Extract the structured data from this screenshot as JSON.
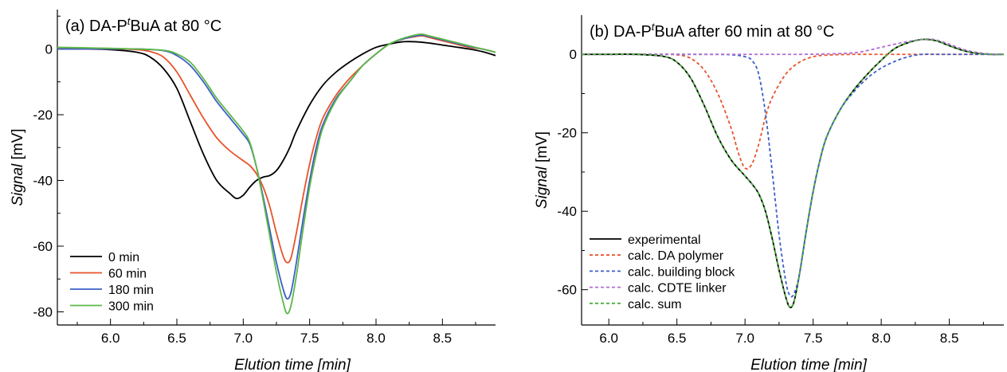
{
  "chart_data": [
    {
      "type": "line",
      "title_prefix": "(a) DA-P",
      "title_super": "t",
      "title_suffix": "BuA at 80 °C",
      "xlabel": "Elution time [min]",
      "ylabel_italic": "Signal",
      "ylabel_unit": " [mV]",
      "xlim": [
        5.6,
        8.9
      ],
      "ylim": [
        -84,
        12
      ],
      "xticks": [
        "6.0",
        "6.5",
        "7.0",
        "7.5",
        "8.0",
        "8.5"
      ],
      "yticks": [
        "0",
        "-20",
        "-40",
        "-60",
        "-80"
      ],
      "legend_position": "bottom-left",
      "series": [
        {
          "name": "0 min",
          "color": "#000000",
          "dash": false,
          "x": [
            5.6,
            5.8,
            6.0,
            6.2,
            6.3,
            6.4,
            6.5,
            6.6,
            6.7,
            6.8,
            6.9,
            6.95,
            7.0,
            7.05,
            7.1,
            7.15,
            7.2,
            7.25,
            7.3,
            7.35,
            7.4,
            7.5,
            7.6,
            7.7,
            7.8,
            7.9,
            8.0,
            8.1,
            8.2,
            8.3,
            8.4,
            8.5,
            8.6,
            8.7,
            8.8,
            8.9
          ],
          "y": [
            0,
            0,
            -0.2,
            -1,
            -2.5,
            -6,
            -12,
            -22,
            -32,
            -40,
            -44,
            -45.5,
            -44.5,
            -42,
            -40,
            -39,
            -38.5,
            -37,
            -34,
            -30,
            -25,
            -17,
            -11,
            -7,
            -4,
            -1.5,
            0.5,
            1.5,
            2.2,
            2.2,
            1.8,
            1.2,
            0.6,
            0,
            -0.8,
            -2
          ]
        },
        {
          "name": "60 min",
          "color": "#e8532a",
          "dash": false,
          "x": [
            5.6,
            6.0,
            6.2,
            6.3,
            6.4,
            6.5,
            6.6,
            6.7,
            6.8,
            6.9,
            7.0,
            7.05,
            7.1,
            7.15,
            7.2,
            7.25,
            7.3,
            7.33,
            7.36,
            7.4,
            7.45,
            7.5,
            7.55,
            7.6,
            7.7,
            7.8,
            7.9,
            8.0,
            8.1,
            8.2,
            8.3,
            8.35,
            8.4,
            8.5,
            8.6,
            8.7,
            8.8,
            8.9
          ],
          "y": [
            0,
            0,
            -0.2,
            -0.8,
            -2.5,
            -7,
            -14,
            -21,
            -27,
            -31,
            -34,
            -35.5,
            -38,
            -42,
            -48,
            -56,
            -63,
            -65,
            -63.5,
            -56,
            -45,
            -35,
            -27,
            -21,
            -14,
            -9,
            -5,
            -1.5,
            1.5,
            3,
            3.8,
            4,
            3.5,
            2.5,
            1.5,
            0.5,
            0,
            -1
          ]
        },
        {
          "name": "180 min",
          "color": "#3b5ec8",
          "dash": false,
          "x": [
            5.6,
            6.0,
            6.2,
            6.4,
            6.5,
            6.6,
            6.7,
            6.8,
            6.9,
            7.0,
            7.05,
            7.1,
            7.15,
            7.2,
            7.25,
            7.3,
            7.33,
            7.36,
            7.4,
            7.45,
            7.5,
            7.55,
            7.6,
            7.7,
            7.8,
            7.9,
            8.0,
            8.1,
            8.2,
            8.3,
            8.35,
            8.4,
            8.5,
            8.6,
            8.7,
            8.8,
            8.9
          ],
          "y": [
            0,
            0,
            0,
            -0.5,
            -2,
            -5,
            -10,
            -16,
            -21,
            -26,
            -29,
            -36,
            -45,
            -55,
            -65,
            -73,
            -76,
            -74,
            -65,
            -52,
            -40,
            -30,
            -23,
            -15,
            -10,
            -5,
            -1.5,
            1.5,
            3,
            4,
            4.2,
            3.8,
            2.8,
            1.8,
            0.8,
            0,
            -1
          ]
        },
        {
          "name": "300 min",
          "color": "#5cb847",
          "dash": false,
          "x": [
            5.6,
            6.0,
            6.2,
            6.4,
            6.5,
            6.6,
            6.7,
            6.8,
            6.9,
            7.0,
            7.05,
            7.1,
            7.15,
            7.2,
            7.25,
            7.3,
            7.33,
            7.36,
            7.4,
            7.45,
            7.5,
            7.55,
            7.6,
            7.7,
            7.8,
            7.9,
            8.0,
            8.1,
            8.2,
            8.3,
            8.35,
            8.4,
            8.5,
            8.6,
            8.7,
            8.8,
            8.9
          ],
          "y": [
            0.5,
            0.2,
            0,
            -0.4,
            -1.5,
            -4,
            -9,
            -15,
            -20,
            -25,
            -28.5,
            -36,
            -46,
            -57,
            -68,
            -77,
            -80.5,
            -78,
            -69,
            -55,
            -42,
            -32,
            -24,
            -15.5,
            -10,
            -5,
            -1.5,
            1.5,
            3.2,
            4.3,
            4.5,
            4,
            3,
            2,
            1,
            0,
            -1
          ]
        }
      ]
    },
    {
      "type": "line",
      "title_prefix": "(b) DA-P",
      "title_super": "t",
      "title_suffix": "BuA after 60 min at 80 °C",
      "xlabel": "Elution time [min]",
      "ylabel_italic": "Signal",
      "ylabel_unit": " [mV]",
      "xlim": [
        5.8,
        8.9
      ],
      "ylim": [
        -69,
        10
      ],
      "xticks": [
        "6.0",
        "6.5",
        "7.0",
        "7.5",
        "8.0",
        "8.5"
      ],
      "yticks": [
        "0",
        "-20",
        "-40",
        "-60"
      ],
      "legend_position": "bottom-left",
      "series": [
        {
          "name": "experimental",
          "color": "#000000",
          "dash": false,
          "x": [
            5.8,
            6.0,
            6.2,
            6.4,
            6.5,
            6.6,
            6.7,
            6.8,
            6.9,
            7.0,
            7.05,
            7.1,
            7.15,
            7.2,
            7.25,
            7.3,
            7.33,
            7.36,
            7.4,
            7.45,
            7.5,
            7.55,
            7.6,
            7.7,
            7.8,
            7.9,
            8.0,
            8.1,
            8.2,
            8.3,
            8.4,
            8.5,
            8.6,
            8.7,
            8.8,
            8.9
          ],
          "y": [
            0,
            0,
            0,
            -0.5,
            -2,
            -6,
            -13,
            -21,
            -27,
            -31,
            -33,
            -35.5,
            -40,
            -47,
            -55,
            -62,
            -64.5,
            -63,
            -56,
            -45,
            -35,
            -27,
            -21,
            -14,
            -9,
            -5,
            -1.5,
            1.5,
            3,
            3.8,
            3.5,
            2.2,
            1,
            0.3,
            0,
            0
          ]
        },
        {
          "name": "calc. DA polymer",
          "color": "#e8532a",
          "dash": true,
          "x": [
            5.8,
            6.4,
            6.5,
            6.6,
            6.7,
            6.8,
            6.9,
            6.95,
            7.0,
            7.05,
            7.1,
            7.15,
            7.2,
            7.3,
            7.4,
            7.5,
            7.6,
            7.8,
            8.0,
            8.9
          ],
          "y": [
            0,
            0,
            -0.1,
            -1,
            -4,
            -10,
            -19,
            -25,
            -29,
            -28,
            -23,
            -16,
            -11,
            -5,
            -2,
            -0.6,
            -0.2,
            0,
            0,
            0
          ]
        },
        {
          "name": "calc. building block",
          "color": "#3b5ec8",
          "dash": true,
          "x": [
            5.8,
            6.7,
            6.9,
            7.0,
            7.05,
            7.1,
            7.15,
            7.2,
            7.25,
            7.3,
            7.33,
            7.36,
            7.4,
            7.45,
            7.5,
            7.55,
            7.6,
            7.7,
            7.8,
            7.9,
            8.0,
            8.1,
            8.2,
            8.3,
            8.4,
            8.5,
            8.6,
            8.7,
            8.8,
            8.9
          ],
          "y": [
            0,
            0,
            -0.1,
            -0.6,
            -1.5,
            -5,
            -15,
            -30,
            -46,
            -58,
            -61.5,
            -61,
            -56,
            -45,
            -35,
            -27,
            -21,
            -14,
            -9.5,
            -6,
            -3.5,
            -1.8,
            -0.6,
            0,
            0,
            0,
            0,
            0,
            0,
            0
          ]
        },
        {
          "name": "calc. CDTE linker",
          "color": "#b36bd6",
          "dash": true,
          "x": [
            5.8,
            7.2,
            7.4,
            7.6,
            7.8,
            7.9,
            8.0,
            8.1,
            8.2,
            8.3,
            8.35,
            8.4,
            8.5,
            8.6,
            8.7,
            8.8,
            8.9
          ],
          "y": [
            0,
            0,
            0,
            0.1,
            0.4,
            1,
            1.8,
            2.6,
            3.3,
            3.8,
            3.9,
            3.7,
            2.6,
            1.3,
            0.5,
            0.1,
            0
          ]
        },
        {
          "name": "calc. sum",
          "color": "#4caf3f",
          "dash": true,
          "x": [
            5.8,
            6.0,
            6.2,
            6.4,
            6.5,
            6.6,
            6.7,
            6.8,
            6.9,
            7.0,
            7.05,
            7.1,
            7.15,
            7.2,
            7.25,
            7.3,
            7.33,
            7.36,
            7.4,
            7.45,
            7.5,
            7.55,
            7.6,
            7.7,
            7.8,
            7.9,
            8.0,
            8.1,
            8.2,
            8.3,
            8.4,
            8.5,
            8.6,
            8.7,
            8.8,
            8.9
          ],
          "y": [
            0,
            0,
            0,
            -0.5,
            -2,
            -6,
            -13,
            -21,
            -27,
            -31,
            -33,
            -35.5,
            -40,
            -47,
            -55,
            -62,
            -64.5,
            -63,
            -56,
            -45,
            -35,
            -27,
            -21,
            -14,
            -9,
            -5,
            -1.5,
            1.5,
            3,
            3.8,
            3.5,
            2.2,
            1,
            0.3,
            0,
            0
          ]
        }
      ]
    }
  ]
}
